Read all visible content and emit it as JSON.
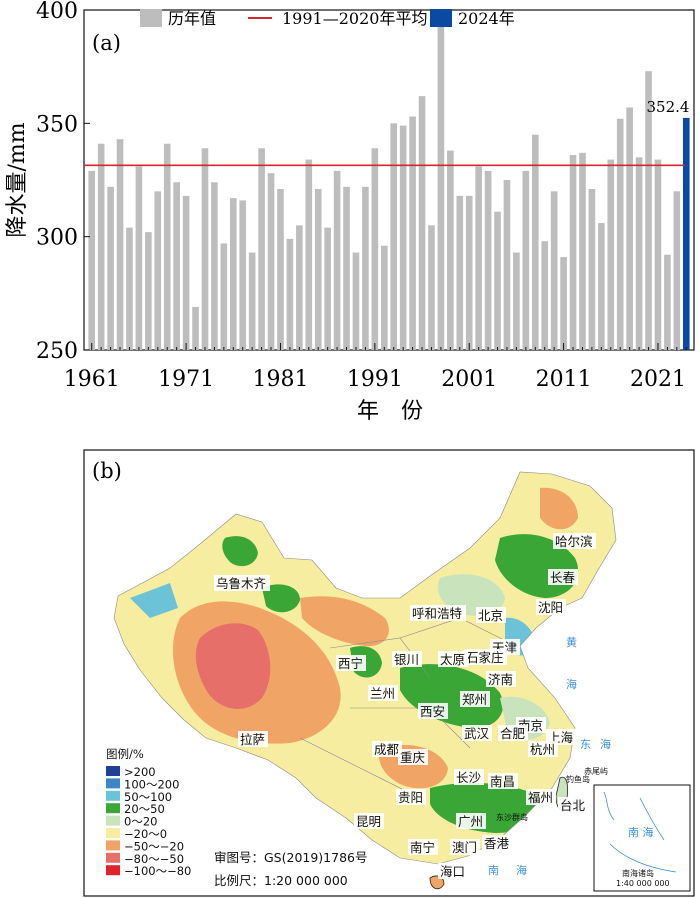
{
  "chart_data": [
    {
      "type": "bar",
      "panel_label": "(a)",
      "xlabel": "年　份",
      "ylabel": "降水量/mm",
      "ylim": [
        250,
        400
      ],
      "yticks": [
        250,
        300,
        350,
        400
      ],
      "xticks": [
        "1961",
        "1971",
        "1981",
        "1991",
        "2001",
        "2011",
        "2021"
      ],
      "grid": false,
      "legend_position": "top",
      "series": [
        {
          "name": "历年值",
          "color": "#bdbdbd"
        },
        {
          "name": "1991—2020年平均",
          "color": "#d9232e"
        },
        {
          "name": "2024年",
          "color": "#0b4aa2"
        }
      ],
      "years": [
        1961,
        1962,
        1963,
        1964,
        1965,
        1966,
        1967,
        1968,
        1969,
        1970,
        1971,
        1972,
        1973,
        1974,
        1975,
        1976,
        1977,
        1978,
        1979,
        1980,
        1981,
        1982,
        1983,
        1984,
        1985,
        1986,
        1987,
        1988,
        1989,
        1990,
        1991,
        1992,
        1993,
        1994,
        1995,
        1996,
        1997,
        1998,
        1999,
        2000,
        2001,
        2002,
        2003,
        2004,
        2005,
        2006,
        2007,
        2008,
        2009,
        2010,
        2011,
        2012,
        2013,
        2014,
        2015,
        2016,
        2017,
        2018,
        2019,
        2020,
        2021,
        2022,
        2023,
        2024
      ],
      "values": [
        329,
        341,
        322,
        343,
        304,
        331,
        302,
        320,
        341,
        324,
        318,
        269,
        339,
        324,
        297,
        317,
        316,
        293,
        339,
        328,
        321,
        299,
        305,
        334,
        321,
        304,
        329,
        322,
        293,
        322,
        339,
        296,
        350,
        349,
        353,
        362,
        305,
        396,
        338,
        318,
        318,
        331,
        329,
        311,
        325,
        293,
        329,
        345,
        298,
        320,
        291,
        336,
        337,
        321,
        306,
        334,
        352,
        357,
        335,
        373,
        334,
        292,
        320,
        352.4
      ],
      "average_1991_2020": 331.5,
      "highlight": {
        "year": 2024,
        "value": 352.4,
        "label": "352.4"
      }
    },
    {
      "type": "map",
      "panel_label": "(b)",
      "legend_title": "图例/%",
      "legend": [
        {
          "label": ">200",
          "color": "#1f3f99"
        },
        {
          "label": "100～200",
          "color": "#3d86c6"
        },
        {
          "label": "50～100",
          "color": "#6cc3d8"
        },
        {
          "label": "20～50",
          "color": "#3aa635"
        },
        {
          "label": "0～20",
          "color": "#c9e4bd"
        },
        {
          "label": "−20～0",
          "color": "#f6eda0"
        },
        {
          "label": "−50～−20",
          "color": "#f0a567"
        },
        {
          "label": "−80～−50",
          "color": "#e76f6a"
        },
        {
          "label": "−100～−80",
          "color": "#e0232a"
        }
      ],
      "cities": [
        "乌鲁木齐",
        "哈尔滨",
        "长春",
        "沈阳",
        "呼和浩特",
        "北京",
        "天津",
        "石家庄",
        "太原",
        "济南",
        "西宁",
        "银川",
        "兰州",
        "郑州",
        "西安",
        "南京",
        "合肥",
        "上海",
        "武汉",
        "杭州",
        "成都",
        "重庆",
        "拉萨",
        "长沙",
        "南昌",
        "贵阳",
        "福州",
        "台北",
        "昆明",
        "广州",
        "南宁",
        "澳门",
        "香港",
        "海口"
      ],
      "seas": [
        "黄",
        "海",
        "东",
        "海",
        "南",
        "海",
        "钓鱼岛",
        "赤尾屿",
        "东沙群岛",
        "南 海"
      ],
      "inset_title": "南海诸岛",
      "inset_scale": "1:40 000 000",
      "review_number": "审图号：GS(2019)1786号",
      "scale": "比例尺：1:20 000 000"
    }
  ]
}
